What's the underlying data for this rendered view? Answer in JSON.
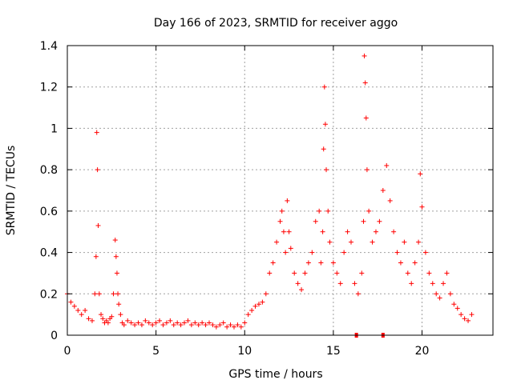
{
  "chart_data": {
    "type": "scatter",
    "title": "Day 166 of 2023, SRMTID for receiver aggo",
    "xlabel": "GPS time / hours",
    "ylabel": "SRMTID / TECUs",
    "xlim": [
      0,
      24
    ],
    "ylim": [
      0,
      1.4
    ],
    "xticks": [
      0,
      5,
      10,
      15,
      20
    ],
    "yticks": [
      0,
      0.2,
      0.4,
      0.6,
      0.8,
      1,
      1.2,
      1.4
    ],
    "xtick_labels": [
      "0",
      "5",
      "10",
      "15",
      "20"
    ],
    "ytick_labels": [
      "0",
      "0.2",
      "0.4",
      "0.6",
      "0.8",
      "1",
      "1.2",
      "1.4"
    ],
    "grid": true,
    "marker": "+",
    "marker_color": "#ff0000",
    "series": [
      {
        "name": "SRMTID",
        "approximate": true,
        "x": [
          0.0,
          0.2,
          0.4,
          0.6,
          0.8,
          1.0,
          1.2,
          1.4,
          1.55,
          1.62,
          1.66,
          1.7,
          1.74,
          1.8,
          1.9,
          2.0,
          2.1,
          2.2,
          2.3,
          2.4,
          2.5,
          2.6,
          2.7,
          2.75,
          2.8,
          2.85,
          2.9,
          3.0,
          3.1,
          3.2,
          3.4,
          3.6,
          3.8,
          4.0,
          4.2,
          4.4,
          4.6,
          4.8,
          5.0,
          5.2,
          5.4,
          5.6,
          5.8,
          6.0,
          6.2,
          6.4,
          6.6,
          6.8,
          7.0,
          7.2,
          7.4,
          7.6,
          7.8,
          8.0,
          8.2,
          8.4,
          8.6,
          8.8,
          9.0,
          9.2,
          9.4,
          9.6,
          9.8,
          10.0,
          10.2,
          10.4,
          10.6,
          10.8,
          11.0,
          11.2,
          11.4,
          11.6,
          11.8,
          12.0,
          12.1,
          12.2,
          12.3,
          12.4,
          12.5,
          12.6,
          12.8,
          13.0,
          13.2,
          13.4,
          13.6,
          13.8,
          14.0,
          14.2,
          14.3,
          14.4,
          14.45,
          14.5,
          14.55,
          14.6,
          14.7,
          14.8,
          15.0,
          15.2,
          15.4,
          15.6,
          15.8,
          16.0,
          16.2,
          16.4,
          16.6,
          16.7,
          16.75,
          16.8,
          16.85,
          16.9,
          17.0,
          17.2,
          17.4,
          17.6,
          17.8,
          18.0,
          18.2,
          18.4,
          18.6,
          18.8,
          19.0,
          19.2,
          19.4,
          19.6,
          19.8,
          19.9,
          20.0,
          20.2,
          20.4,
          20.6,
          20.8,
          21.0,
          21.2,
          21.4,
          21.6,
          21.8,
          22.0,
          22.2,
          22.4,
          22.6,
          22.8
        ],
        "y": [
          0.2,
          0.16,
          0.14,
          0.12,
          0.1,
          0.12,
          0.08,
          0.07,
          0.2,
          0.38,
          0.98,
          0.8,
          0.53,
          0.2,
          0.1,
          0.08,
          0.06,
          0.07,
          0.06,
          0.08,
          0.09,
          0.2,
          0.46,
          0.38,
          0.3,
          0.2,
          0.15,
          0.1,
          0.06,
          0.05,
          0.07,
          0.06,
          0.05,
          0.06,
          0.05,
          0.07,
          0.06,
          0.05,
          0.06,
          0.07,
          0.05,
          0.06,
          0.07,
          0.05,
          0.06,
          0.05,
          0.06,
          0.07,
          0.05,
          0.06,
          0.05,
          0.06,
          0.05,
          0.06,
          0.05,
          0.04,
          0.05,
          0.06,
          0.04,
          0.05,
          0.04,
          0.05,
          0.04,
          0.06,
          0.1,
          0.12,
          0.14,
          0.15,
          0.16,
          0.2,
          0.3,
          0.35,
          0.45,
          0.55,
          0.6,
          0.5,
          0.4,
          0.65,
          0.5,
          0.42,
          0.3,
          0.25,
          0.22,
          0.3,
          0.35,
          0.4,
          0.55,
          0.6,
          0.35,
          0.5,
          0.9,
          1.2,
          1.02,
          0.8,
          0.6,
          0.45,
          0.35,
          0.3,
          0.25,
          0.4,
          0.5,
          0.45,
          0.25,
          0.2,
          0.3,
          0.55,
          1.35,
          1.22,
          1.05,
          0.8,
          0.6,
          0.45,
          0.5,
          0.55,
          0.7,
          0.82,
          0.65,
          0.5,
          0.4,
          0.35,
          0.45,
          0.3,
          0.25,
          0.35,
          0.45,
          0.78,
          0.62,
          0.4,
          0.3,
          0.25,
          0.2,
          0.18,
          0.25,
          0.3,
          0.2,
          0.15,
          0.13,
          0.1,
          0.08,
          0.07,
          0.1
        ]
      }
    ],
    "outliers": [
      {
        "x": 16.3,
        "y": 0.0
      },
      {
        "x": 17.8,
        "y": 0.0
      }
    ]
  }
}
